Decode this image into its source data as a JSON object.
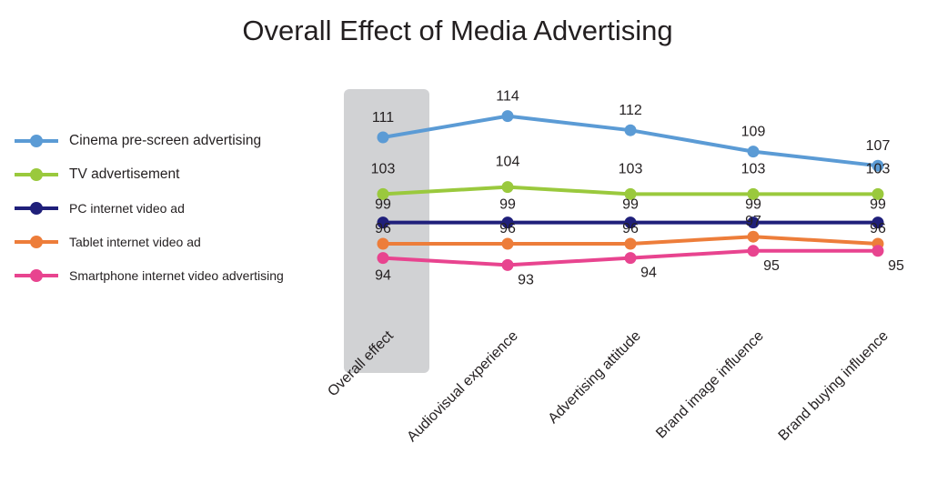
{
  "title": "Overall Effect of Media Advertising",
  "chart_data": {
    "type": "line",
    "title": "Overall Effect of Media Advertising",
    "xlabel": "",
    "ylabel": "",
    "categories": [
      "Overall effect",
      "Audiovisual experience",
      "Advertising attitude",
      "Brand image influence",
      "Brand buying influence"
    ],
    "highlighted_category": "Overall effect",
    "series": [
      {
        "name": "Cinema pre-screen advertising",
        "color": "#5b9bd5",
        "values": [
          111,
          114,
          112,
          109,
          107
        ]
      },
      {
        "name": "TV advertisement",
        "color": "#9ac93d",
        "values": [
          103,
          104,
          103,
          103,
          103
        ]
      },
      {
        "name": "PC internet video ad",
        "color": "#1f1f7a",
        "values": [
          99,
          99,
          99,
          99,
          99
        ]
      },
      {
        "name": "Tablet internet video ad",
        "color": "#ed7d3a",
        "values": [
          96,
          96,
          96,
          97,
          96
        ]
      },
      {
        "name": "Smartphone internet video advertising",
        "color": "#e8448f",
        "values": [
          94,
          93,
          94,
          95,
          95
        ]
      }
    ],
    "legend": "left",
    "grid": false
  }
}
